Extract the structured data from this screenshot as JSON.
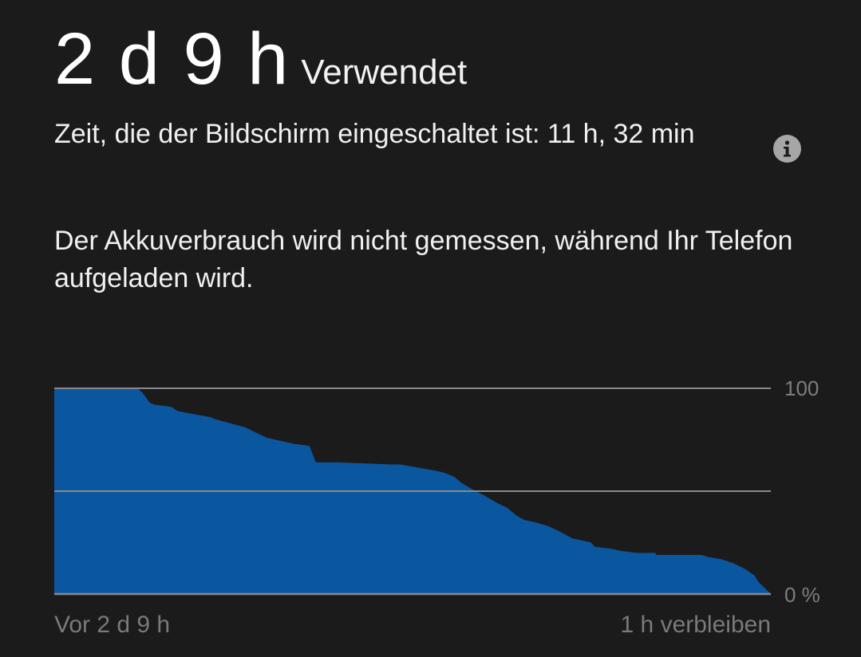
{
  "usage": {
    "value": "2 d 9 h",
    "label": "Verwendet"
  },
  "screen_time": "Zeit, die der Bildschirm eingeschaltet ist: 11 h, 32 min",
  "charging_note": "Der Akkuverbrauch wird nicht gemessen, während Ihr Telefon aufgeladen wird.",
  "icons": {
    "info": "info-icon"
  },
  "colors": {
    "background": "#1b1b1b",
    "battery_fill": "#0a57a0",
    "gridline": "#8a8a8a",
    "muted_text": "#7a7a7a"
  },
  "chart_data": {
    "type": "area",
    "title": "",
    "xlabel": "",
    "ylabel": "",
    "ylim": [
      0,
      100
    ],
    "y_tick_labels": [
      "100",
      "0 %"
    ],
    "x_label_start": "Vor 2 d 9 h",
    "x_label_end": "1 h verbleiben",
    "grid": true,
    "x_range_hours": [
      0,
      57
    ],
    "series": [
      {
        "x": [
          0,
          6.6,
          7.0,
          7.6,
          8.0,
          9.3,
          9.8,
          10.6,
          12.4,
          12.8,
          14.0,
          15.2,
          16.2,
          16.9,
          17.6,
          19.1,
          20.3,
          20.8,
          22.5,
          26.8,
          27.5,
          30.3,
          31.0,
          31.8,
          32.4,
          33.5,
          34.2,
          35.3,
          36.0,
          36.8,
          37.4,
          38.2,
          39.3,
          40.0,
          41.2,
          42.0,
          42.7,
          43.0,
          44.3,
          45.0,
          46.3,
          47.8,
          47.9,
          51.5,
          52.0,
          53.0,
          54.0,
          55.0,
          55.7,
          56.0,
          56.5,
          57.0
        ],
        "y": [
          100,
          100,
          98,
          93,
          92,
          91,
          89,
          88,
          86,
          85,
          83,
          81,
          78,
          76,
          75,
          73,
          72,
          64,
          64,
          63,
          63,
          60,
          59,
          57,
          54,
          50,
          48,
          44,
          42,
          38,
          36,
          35,
          33,
          31,
          27,
          26,
          25,
          23,
          22,
          21,
          20,
          20,
          19,
          19,
          18,
          17,
          15,
          12,
          9,
          6,
          3,
          0
        ]
      }
    ]
  }
}
